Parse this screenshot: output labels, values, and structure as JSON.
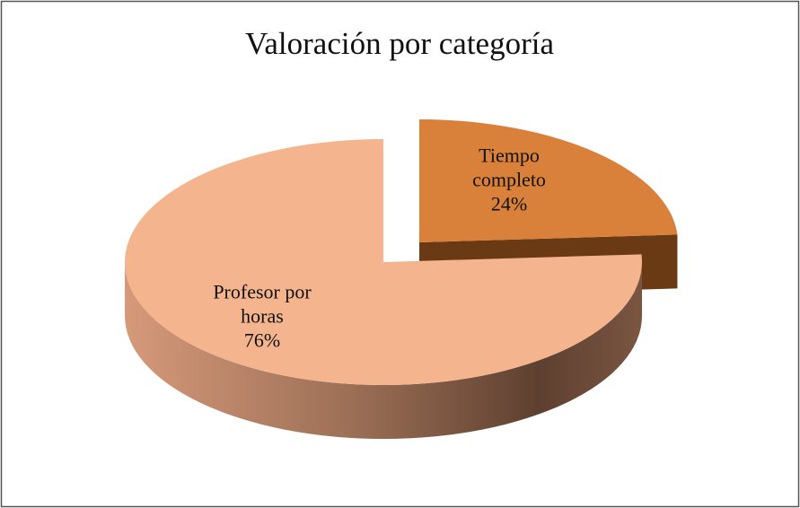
{
  "chart_data": {
    "type": "pie",
    "title": "Valoración por categoría",
    "categories": [
      "Tiempo completo",
      "Profesor por horas"
    ],
    "values": [
      24,
      76
    ],
    "value_labels": [
      "24%",
      "76%"
    ],
    "colors": [
      "#d9803a",
      "#f4b48e"
    ]
  }
}
